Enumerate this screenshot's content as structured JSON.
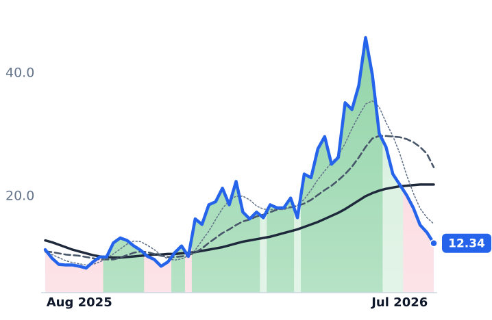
{
  "chart_data": {
    "type": "line",
    "categories": [
      null,
      null,
      null,
      null,
      null,
      "Aug 2025",
      null,
      null,
      null,
      null,
      null,
      null,
      null,
      null,
      null,
      null,
      null,
      null,
      null,
      null,
      null,
      null,
      null,
      null,
      null,
      null,
      null,
      null,
      null,
      null,
      null,
      null,
      null,
      null,
      null,
      null,
      null,
      null,
      null,
      null,
      null,
      null,
      null,
      null,
      null,
      null,
      null,
      null,
      null,
      null,
      null,
      null,
      "Jul 2026",
      null,
      null,
      null,
      null,
      null
    ],
    "series": [
      {
        "color": "#2563eb",
        "style": "solid",
        "values": [
          11.3,
          9.9,
          8.9,
          8.8,
          8.8,
          8.6,
          8.3,
          9.3,
          10.1,
          10.1,
          12.4,
          13.2,
          12.8,
          11.9,
          11.2,
          10.2,
          9.7,
          8.6,
          9.3,
          10.8,
          11.9,
          10.2,
          16.3,
          15.4,
          18.6,
          19.1,
          21.3,
          18.6,
          22.4,
          17.4,
          16.3,
          17.4,
          16.5,
          18.6,
          18.1,
          18.1,
          19.7,
          16.5,
          23.6,
          23.0,
          27.7,
          29.7,
          25.2,
          26.3,
          35.2,
          34.1,
          38.0,
          45.8,
          39.7,
          30.2,
          28.0,
          23.6,
          21.9,
          20.2,
          18.1,
          15.3,
          14.1,
          12.34
        ]
      },
      {
        "color": "#64748b",
        "style": "dotted",
        "values": [
          10.9,
          10.5,
          10.0,
          9.5,
          9.2,
          9.0,
          8.8,
          8.9,
          9.3,
          9.9,
          10.6,
          11.4,
          12.2,
          12.7,
          12.6,
          12.0,
          11.3,
          10.4,
          9.8,
          9.6,
          9.8,
          10.3,
          11.2,
          12.8,
          14.3,
          16.2,
          18.0,
          19.3,
          20.0,
          20.0,
          19.4,
          18.4,
          17.9,
          17.8,
          17.9,
          17.8,
          18.2,
          18.5,
          19.5,
          21.0,
          22.7,
          24.1,
          25.5,
          26.6,
          28.6,
          31.0,
          33.1,
          35.0,
          35.5,
          34.5,
          32.0,
          29.8,
          27.0,
          23.5,
          20.5,
          18.0,
          16.5,
          15.5
        ]
      },
      {
        "color": "#475569",
        "style": "dashed",
        "values": [
          11.0,
          10.9,
          10.7,
          10.5,
          10.4,
          10.3,
          10.1,
          9.9,
          9.7,
          9.7,
          9.7,
          10.0,
          10.4,
          10.8,
          11.0,
          10.9,
          10.6,
          10.3,
          10.1,
          10.1,
          10.2,
          10.4,
          10.8,
          11.5,
          12.4,
          13.2,
          14.0,
          14.6,
          15.3,
          15.9,
          16.2,
          16.7,
          17.0,
          17.4,
          17.8,
          18.0,
          18.2,
          18.4,
          18.8,
          19.4,
          20.2,
          21.0,
          21.7,
          22.6,
          23.6,
          24.8,
          26.3,
          28.0,
          29.4,
          29.8,
          29.8,
          29.7,
          29.6,
          29.3,
          28.8,
          28.0,
          26.9,
          24.7
        ]
      },
      {
        "color": "#1e293b",
        "style": "solid-thick",
        "values": [
          12.8,
          12.5,
          12.1,
          11.7,
          11.3,
          11.0,
          10.7,
          10.4,
          10.2,
          10.1,
          10.0,
          10.0,
          10.1,
          10.2,
          10.3,
          10.4,
          10.5,
          10.5,
          10.6,
          10.6,
          10.7,
          10.8,
          10.9,
          11.1,
          11.3,
          11.5,
          11.7,
          12.0,
          12.3,
          12.6,
          12.8,
          13.0,
          13.2,
          13.4,
          13.7,
          14.0,
          14.3,
          14.6,
          15.0,
          15.4,
          15.8,
          16.3,
          16.8,
          17.3,
          17.9,
          18.6,
          19.3,
          20.0,
          20.5,
          20.9,
          21.2,
          21.4,
          21.6,
          21.7,
          21.8,
          21.9,
          21.9,
          21.9
        ]
      }
    ],
    "ylim": [
      4.3,
      49.7
    ],
    "yticks": [
      {
        "value": 20,
        "label": "20.0"
      },
      {
        "value": 40,
        "label": "40.0"
      }
    ],
    "zone_colors": {
      "below": "#fbd5dc",
      "weak": "#d3eedb",
      "strong": "#8fd3a6"
    }
  }
}
